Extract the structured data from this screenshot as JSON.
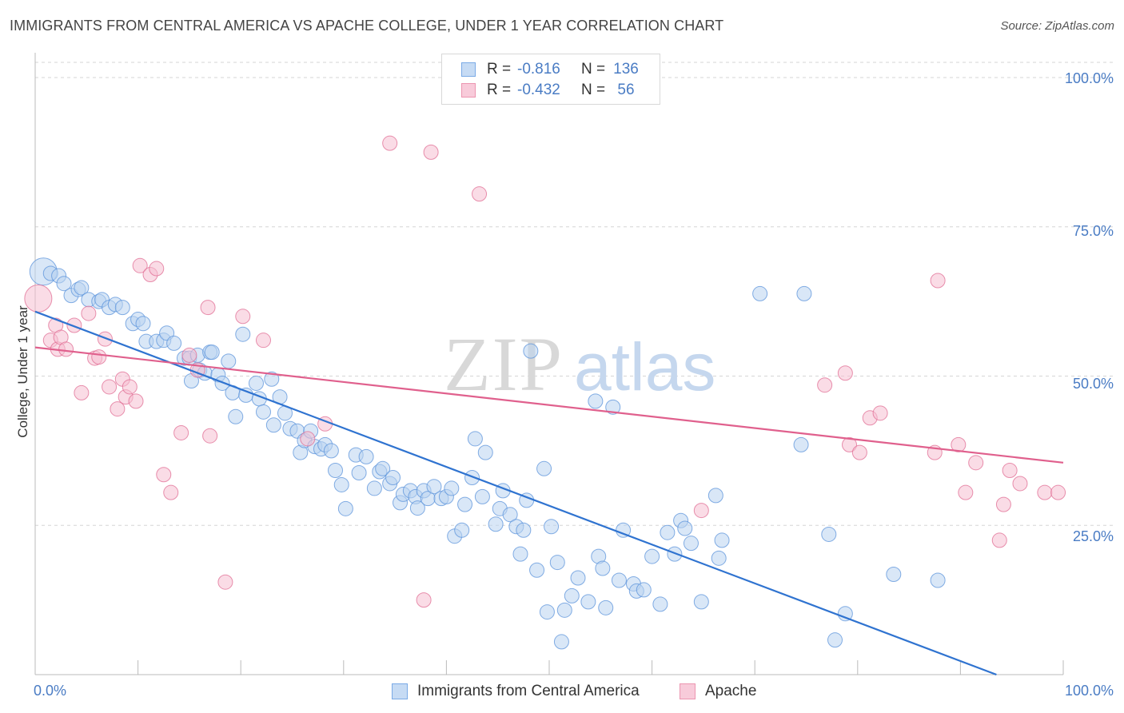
{
  "title": "IMMIGRANTS FROM CENTRAL AMERICA VS APACHE COLLEGE, UNDER 1 YEAR CORRELATION CHART",
  "source": "Source: ZipAtlas.com",
  "watermark": {
    "zip": "ZIP",
    "atlas": "atlas"
  },
  "legend": {
    "rows": [
      {
        "r_label": "R =",
        "r_value": "-0.816",
        "n_label": "N =",
        "n_value": "136",
        "color": "#7aaae6",
        "fill": "#c6dbf4"
      },
      {
        "r_label": "R =",
        "r_value": "-0.432",
        "n_label": "N =",
        "n_value": "56",
        "color": "#ec95b0",
        "fill": "#f8cbda"
      }
    ]
  },
  "bottom_legend": {
    "series1": "Immigrants from Central America",
    "series2": "Apache"
  },
  "chart_data": {
    "type": "scatter",
    "title": "IMMIGRANTS FROM CENTRAL AMERICA VS APACHE COLLEGE, UNDER 1 YEAR CORRELATION CHART",
    "xlabel": "",
    "ylabel": "College, Under 1 year",
    "xlim": [
      0,
      100
    ],
    "ylim": [
      0,
      100
    ],
    "x_tick_labels": [
      "0.0%",
      "100.0%"
    ],
    "y_tick_labels": [
      "100.0%",
      "75.0%",
      "50.0%",
      "25.0%"
    ],
    "y_ticks": [
      100,
      75,
      50,
      25
    ],
    "grid": true,
    "legend_position": "top-center",
    "series": [
      {
        "name": "Immigrants from Central America",
        "color": "#5b93db",
        "fill": "#b9d3f1",
        "trend": {
          "x": [
            0,
            93.5
          ],
          "y": [
            60.8,
            0
          ]
        },
        "points": [
          [
            0.8,
            67.5
          ],
          [
            1.5,
            67.2
          ],
          [
            2.3,
            66.8
          ],
          [
            2.8,
            65.5
          ],
          [
            3.5,
            63.5
          ],
          [
            4.2,
            64.5
          ],
          [
            4.5,
            64.8
          ],
          [
            5.2,
            62.8
          ],
          [
            6.2,
            62.5
          ],
          [
            6.5,
            62.8
          ],
          [
            7.2,
            61.5
          ],
          [
            7.8,
            62.0
          ],
          [
            8.5,
            61.5
          ],
          [
            9.5,
            58.8
          ],
          [
            10.0,
            59.5
          ],
          [
            10.5,
            58.8
          ],
          [
            10.8,
            55.8
          ],
          [
            11.8,
            55.8
          ],
          [
            12.5,
            56.0
          ],
          [
            12.8,
            57.2
          ],
          [
            13.5,
            55.5
          ],
          [
            14.5,
            53.0
          ],
          [
            15.0,
            53.0
          ],
          [
            15.2,
            49.2
          ],
          [
            15.8,
            53.5
          ],
          [
            16.0,
            51.0
          ],
          [
            16.5,
            50.5
          ],
          [
            17.0,
            54.0
          ],
          [
            17.2,
            54.0
          ],
          [
            17.8,
            50.2
          ],
          [
            18.2,
            48.8
          ],
          [
            18.8,
            52.5
          ],
          [
            19.2,
            47.2
          ],
          [
            19.5,
            43.2
          ],
          [
            20.2,
            57.0
          ],
          [
            20.5,
            46.8
          ],
          [
            21.5,
            48.8
          ],
          [
            21.8,
            46.2
          ],
          [
            22.2,
            44.0
          ],
          [
            23.0,
            49.5
          ],
          [
            23.2,
            41.8
          ],
          [
            23.8,
            46.5
          ],
          [
            24.3,
            43.8
          ],
          [
            24.8,
            41.2
          ],
          [
            25.5,
            40.8
          ],
          [
            25.8,
            37.2
          ],
          [
            26.2,
            39.2
          ],
          [
            26.8,
            40.8
          ],
          [
            27.2,
            38.2
          ],
          [
            27.8,
            37.8
          ],
          [
            28.2,
            38.5
          ],
          [
            28.8,
            37.5
          ],
          [
            29.2,
            34.2
          ],
          [
            29.8,
            31.8
          ],
          [
            30.2,
            27.8
          ],
          [
            31.2,
            36.8
          ],
          [
            31.5,
            33.8
          ],
          [
            32.2,
            36.5
          ],
          [
            33.0,
            31.2
          ],
          [
            33.5,
            34.0
          ],
          [
            33.8,
            34.5
          ],
          [
            34.5,
            32.0
          ],
          [
            34.8,
            33.0
          ],
          [
            35.5,
            28.8
          ],
          [
            35.8,
            30.2
          ],
          [
            36.5,
            30.8
          ],
          [
            37.0,
            29.8
          ],
          [
            37.2,
            27.9
          ],
          [
            37.8,
            30.8
          ],
          [
            38.2,
            29.5
          ],
          [
            38.8,
            31.5
          ],
          [
            39.5,
            29.5
          ],
          [
            40.0,
            29.8
          ],
          [
            40.5,
            31.2
          ],
          [
            40.8,
            23.2
          ],
          [
            41.5,
            24.2
          ],
          [
            41.8,
            28.5
          ],
          [
            42.5,
            33.0
          ],
          [
            42.8,
            39.5
          ],
          [
            43.5,
            29.8
          ],
          [
            43.8,
            37.2
          ],
          [
            44.8,
            25.2
          ],
          [
            45.2,
            27.8
          ],
          [
            45.5,
            30.8
          ],
          [
            46.2,
            26.8
          ],
          [
            46.8,
            24.8
          ],
          [
            47.2,
            20.2
          ],
          [
            47.5,
            24.2
          ],
          [
            47.8,
            29.2
          ],
          [
            48.2,
            54.2
          ],
          [
            48.8,
            17.5
          ],
          [
            49.5,
            34.5
          ],
          [
            49.8,
            10.5
          ],
          [
            50.2,
            24.8
          ],
          [
            50.8,
            18.8
          ],
          [
            51.2,
            5.5
          ],
          [
            51.5,
            10.8
          ],
          [
            52.2,
            13.2
          ],
          [
            52.8,
            16.2
          ],
          [
            53.8,
            12.2
          ],
          [
            54.5,
            45.8
          ],
          [
            54.8,
            19.8
          ],
          [
            55.2,
            17.8
          ],
          [
            55.5,
            11.2
          ],
          [
            56.2,
            44.8
          ],
          [
            56.8,
            15.8
          ],
          [
            57.2,
            24.2
          ],
          [
            58.2,
            15.2
          ],
          [
            58.5,
            14.0
          ],
          [
            59.2,
            14.2
          ],
          [
            60.0,
            19.8
          ],
          [
            60.8,
            11.8
          ],
          [
            61.5,
            23.8
          ],
          [
            62.2,
            20.2
          ],
          [
            62.8,
            25.8
          ],
          [
            63.2,
            24.5
          ],
          [
            63.8,
            22.0
          ],
          [
            64.8,
            12.2
          ],
          [
            66.2,
            30.0
          ],
          [
            66.5,
            19.5
          ],
          [
            66.8,
            22.5
          ],
          [
            70.5,
            63.8
          ],
          [
            74.5,
            38.5
          ],
          [
            74.8,
            63.8
          ],
          [
            77.2,
            23.5
          ],
          [
            77.8,
            5.8
          ],
          [
            78.8,
            10.2
          ],
          [
            83.5,
            16.8
          ],
          [
            87.8,
            15.8
          ]
        ]
      },
      {
        "name": "Apache",
        "color": "#e06c93",
        "fill": "#f5c0d1",
        "trend": {
          "x": [
            0,
            100
          ],
          "y": [
            54.8,
            35.5
          ]
        },
        "points": [
          [
            0.3,
            63.0
          ],
          [
            1.5,
            56.0
          ],
          [
            2.0,
            58.5
          ],
          [
            2.2,
            54.5
          ],
          [
            2.5,
            56.5
          ],
          [
            3.0,
            54.5
          ],
          [
            3.8,
            58.5
          ],
          [
            4.5,
            47.2
          ],
          [
            5.2,
            60.5
          ],
          [
            5.8,
            53.0
          ],
          [
            6.2,
            53.2
          ],
          [
            6.8,
            56.2
          ],
          [
            7.2,
            48.2
          ],
          [
            8.0,
            44.5
          ],
          [
            8.5,
            49.5
          ],
          [
            8.8,
            46.5
          ],
          [
            9.2,
            48.2
          ],
          [
            9.8,
            45.8
          ],
          [
            10.2,
            68.5
          ],
          [
            11.2,
            67.0
          ],
          [
            11.8,
            68.0
          ],
          [
            12.5,
            33.5
          ],
          [
            13.2,
            30.5
          ],
          [
            14.2,
            40.5
          ],
          [
            15.0,
            53.5
          ],
          [
            15.8,
            51.0
          ],
          [
            16.8,
            61.5
          ],
          [
            17.0,
            40.0
          ],
          [
            18.5,
            15.5
          ],
          [
            20.2,
            60.0
          ],
          [
            22.2,
            56.0
          ],
          [
            26.5,
            39.5
          ],
          [
            28.2,
            42.0
          ],
          [
            34.5,
            89.0
          ],
          [
            37.8,
            12.5
          ],
          [
            38.5,
            87.5
          ],
          [
            43.2,
            80.5
          ],
          [
            64.8,
            27.5
          ],
          [
            76.8,
            48.5
          ],
          [
            78.8,
            50.5
          ],
          [
            79.2,
            38.5
          ],
          [
            80.2,
            37.2
          ],
          [
            81.2,
            43.0
          ],
          [
            82.2,
            43.8
          ],
          [
            87.5,
            37.2
          ],
          [
            87.8,
            66.0
          ],
          [
            89.8,
            38.5
          ],
          [
            90.5,
            30.5
          ],
          [
            91.5,
            35.5
          ],
          [
            93.8,
            22.5
          ],
          [
            94.2,
            28.5
          ],
          [
            94.8,
            34.2
          ],
          [
            95.8,
            32.0
          ],
          [
            98.2,
            30.5
          ],
          [
            99.5,
            30.5
          ]
        ]
      }
    ]
  }
}
